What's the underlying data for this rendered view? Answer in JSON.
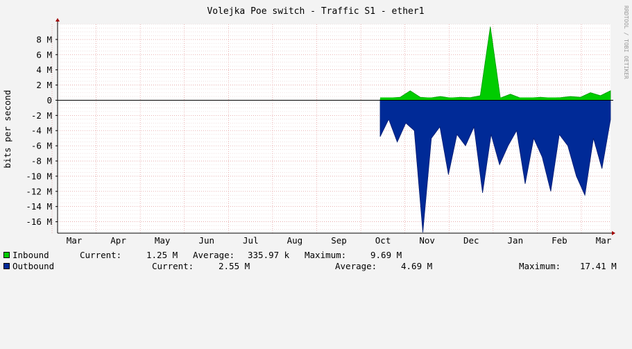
{
  "chart_data": {
    "type": "area",
    "title": "Volejka Poe switch - Traffic S1 - ether1",
    "ylabel": "bits per second",
    "watermark": "RRDTOOL / TOBI OETIKER",
    "ylim": [
      -17500000,
      10000000
    ],
    "y_ticks": [
      {
        "v": 8000000,
        "label": "8 M"
      },
      {
        "v": 6000000,
        "label": "6 M"
      },
      {
        "v": 4000000,
        "label": "4 M"
      },
      {
        "v": 2000000,
        "label": "2 M"
      },
      {
        "v": 0,
        "label": "0"
      },
      {
        "v": -2000000,
        "label": "-2 M"
      },
      {
        "v": -4000000,
        "label": "-4 M"
      },
      {
        "v": -6000000,
        "label": "-6 M"
      },
      {
        "v": -8000000,
        "label": "-8 M"
      },
      {
        "v": -10000000,
        "label": "-10 M"
      },
      {
        "v": -12000000,
        "label": "-12 M"
      },
      {
        "v": -14000000,
        "label": "-14 M"
      },
      {
        "v": -16000000,
        "label": "-16 M"
      }
    ],
    "x_months": [
      "Mar",
      "Apr",
      "May",
      "Jun",
      "Jul",
      "Aug",
      "Sep",
      "Oct",
      "Nov",
      "Dec",
      "Jan",
      "Feb",
      "Mar"
    ],
    "grid": true,
    "legend_position": "bottom",
    "series": [
      {
        "name": "Inbound",
        "color": "#00cc00",
        "color_dark": "#009900",
        "points": [
          [
            "Oct",
            0.1
          ],
          [
            "Oct",
            0.3
          ],
          [
            "Oct",
            0.4
          ],
          [
            "Oct",
            1.25
          ],
          [
            "Oct",
            0.4
          ],
          [
            "Nov",
            0.3
          ],
          [
            "Nov",
            0.5
          ],
          [
            "Nov",
            0.3
          ],
          [
            "Nov",
            0.4
          ],
          [
            "Dec",
            0.35
          ],
          [
            "Dec",
            0.6
          ],
          [
            "Dec",
            9.69
          ],
          [
            "Dec",
            0.3
          ],
          [
            "Dec",
            0.8
          ],
          [
            "Dec",
            0.3
          ],
          [
            "Jan",
            0.3
          ],
          [
            "Jan",
            0.4
          ],
          [
            "Jan",
            0.3
          ],
          [
            "Feb",
            0.35
          ],
          [
            "Feb",
            0.5
          ],
          [
            "Feb",
            0.4
          ],
          [
            "Mar",
            1.0
          ],
          [
            "Mar",
            0.6
          ],
          [
            "Mar",
            1.25
          ]
        ],
        "unit": "M"
      },
      {
        "name": "Outbound",
        "color": "#002a97",
        "color_dark": "#001a70",
        "points": [
          [
            "Oct",
            -4.8
          ],
          [
            "Oct",
            -2.5
          ],
          [
            "Oct",
            -5.5
          ],
          [
            "Oct",
            -3.0
          ],
          [
            "Oct",
            -4.0
          ],
          [
            "Nov",
            -17.41
          ],
          [
            "Nov",
            -5.0
          ],
          [
            "Nov",
            -3.5
          ],
          [
            "Nov",
            -9.8
          ],
          [
            "Nov",
            -4.5
          ],
          [
            "Dec",
            -6.0
          ],
          [
            "Dec",
            -3.5
          ],
          [
            "Dec",
            -12.2
          ],
          [
            "Dec",
            -4.5
          ],
          [
            "Dec",
            -8.5
          ],
          [
            "Dec",
            -6.0
          ],
          [
            "Jan",
            -4.0
          ],
          [
            "Jan",
            -11.0
          ],
          [
            "Jan",
            -5.0
          ],
          [
            "Jan",
            -7.5
          ],
          [
            "Feb",
            -12.0
          ],
          [
            "Feb",
            -4.5
          ],
          [
            "Feb",
            -6.0
          ],
          [
            "Feb",
            -10.0
          ],
          [
            "Feb",
            -12.5
          ],
          [
            "Mar",
            -5.0
          ],
          [
            "Mar",
            -9.0
          ],
          [
            "Mar",
            -2.55
          ]
        ],
        "unit": "M"
      }
    ]
  },
  "legend": {
    "inbound": {
      "name": "Inbound",
      "current_label": "Current:",
      "current": "1.25 M",
      "average_label": "Average:",
      "average": "335.97 k",
      "maximum_label": "Maximum:",
      "maximum": "9.69 M",
      "color": "#00cc00"
    },
    "outbound": {
      "name": "Outbound",
      "current_label": "Current:",
      "current": "2.55 M",
      "average_label": "Average:",
      "average": "4.69 M",
      "maximum_label": "Maximum:",
      "maximum": "17.41 M",
      "color": "#002a97"
    }
  }
}
